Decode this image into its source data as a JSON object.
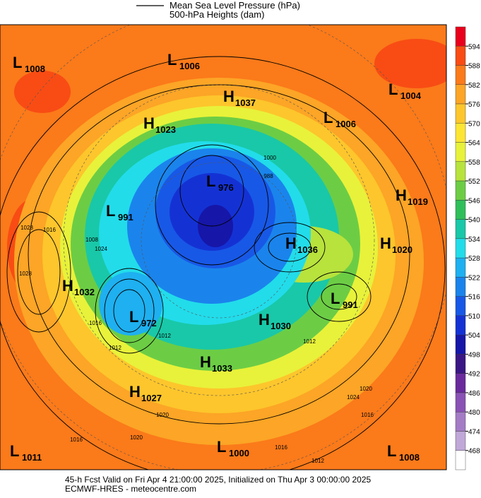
{
  "legend": {
    "mslp": "Mean Sea Level Pressure (hPa)",
    "heights": "500-hPa Heights (dam)"
  },
  "colorbar": {
    "ticks": [
      594,
      588,
      582,
      576,
      570,
      564,
      558,
      552,
      546,
      540,
      534,
      528,
      522,
      516,
      510,
      504,
      498,
      492,
      486,
      480,
      474,
      468
    ],
    "colors": [
      "#e8001c",
      "#f84c14",
      "#fb7a1a",
      "#fca526",
      "#fdc62c",
      "#fde534",
      "#e8f23a",
      "#b8e23c",
      "#6ccd45",
      "#2fbf5a",
      "#19c8a8",
      "#22dcea",
      "#1eb0f0",
      "#1a84ec",
      "#1858e6",
      "#1432d4",
      "#1616a8",
      "#3a1684",
      "#6a2a9c",
      "#8a52b4",
      "#a47cc6",
      "#c0a8d8",
      "#ffffff"
    ]
  },
  "centers": [
    {
      "kind": "L",
      "value": 1008
    },
    {
      "kind": "L",
      "value": 1006
    },
    {
      "kind": "H",
      "value": 1037
    },
    {
      "kind": "L",
      "value": 1004
    },
    {
      "kind": "H",
      "value": 1023
    },
    {
      "kind": "L",
      "value": 1006
    },
    {
      "kind": "L",
      "value": 976
    },
    {
      "kind": "H",
      "value": 1019
    },
    {
      "kind": "L",
      "value": 991
    },
    {
      "kind": "H",
      "value": 1036
    },
    {
      "kind": "H",
      "value": 1020
    },
    {
      "kind": "H",
      "value": 1032
    },
    {
      "kind": "L",
      "value": 991
    },
    {
      "kind": "L",
      "value": 972
    },
    {
      "kind": "H",
      "value": 1030
    },
    {
      "kind": "H",
      "value": 1033
    },
    {
      "kind": "H",
      "value": 1027
    },
    {
      "kind": "L",
      "value": 1011
    },
    {
      "kind": "L",
      "value": 1000
    },
    {
      "kind": "L",
      "value": 1008
    }
  ],
  "contour_labels": [
    1028,
    1016,
    1008,
    1024,
    1028,
    1016,
    1012,
    1012,
    1020,
    1016,
    1024,
    1020,
    1016,
    1012,
    1016,
    1020,
    1012,
    1000,
    988
  ],
  "footer": {
    "line1": "45-h Fcst Valid on Fri Apr  4 21:00:00 2025, Initialized on Thu Apr  3 00:00:00 2025",
    "line2": "ECMWF-HRES - meteocentre.com"
  }
}
